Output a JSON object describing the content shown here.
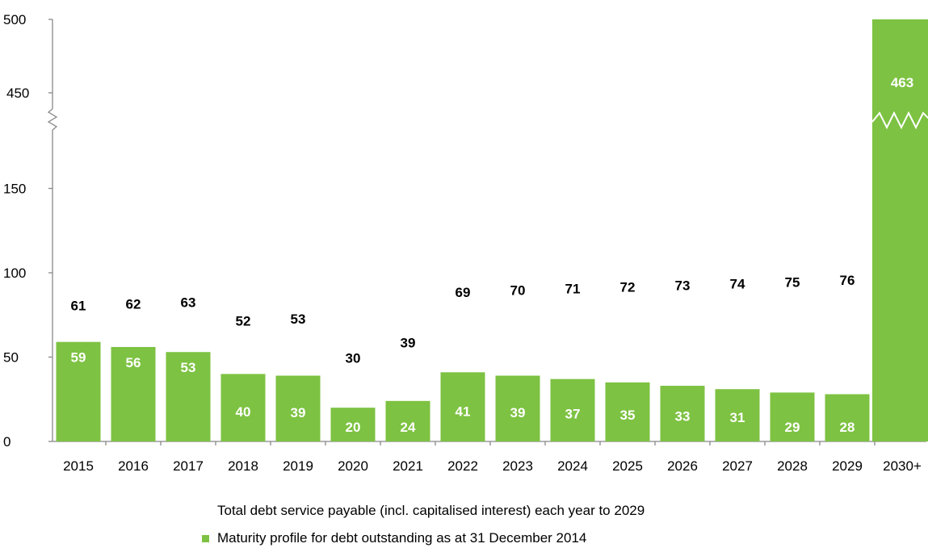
{
  "chart_data": {
    "type": "bar",
    "categories": [
      "2015",
      "2016",
      "2017",
      "2018",
      "2019",
      "2020",
      "2021",
      "2022",
      "2023",
      "2024",
      "2025",
      "2026",
      "2027",
      "2028",
      "2029",
      "2030+"
    ],
    "values": [
      59,
      56,
      53,
      40,
      39,
      20,
      24,
      41,
      39,
      37,
      35,
      33,
      31,
      29,
      28,
      463
    ],
    "totals": [
      61,
      62,
      63,
      52,
      53,
      30,
      39,
      69,
      70,
      71,
      72,
      73,
      74,
      75,
      76,
      null
    ],
    "y_ticks": [
      0,
      50,
      100,
      150,
      450,
      500
    ],
    "axis_break": {
      "from": 200,
      "to": 400
    },
    "ylim": [
      0,
      500
    ],
    "caption": "Total debt service payable (incl. capitalised interest) each year to 2029",
    "legend": [
      {
        "name": "Maturity profile for debt outstanding as at 31 December 2014",
        "color": "#7dc242"
      }
    ],
    "bar_color": "#7dc242"
  }
}
